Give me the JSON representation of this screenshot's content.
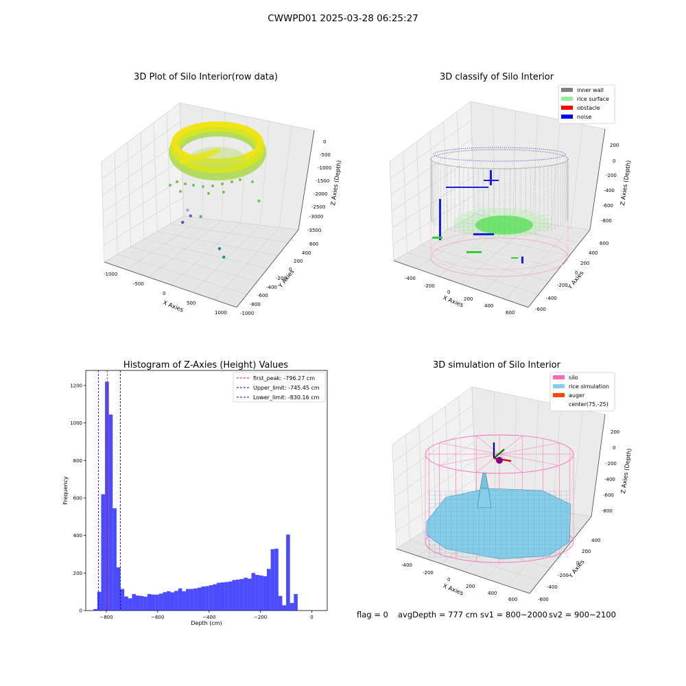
{
  "suptitle": "CWWPD01 2025-03-28 06:25:27",
  "status_line": {
    "flag": "flag = 0",
    "avg_depth": "avgDepth = 777 cm",
    "sv1": "sv1 = 800~2000",
    "sv2": "sv2 = 900~2100"
  },
  "chart_data": [
    {
      "type": "scatter",
      "projection": "3d",
      "title": "3D Plot of Silo Interior(row data)",
      "xlabel": "X Axies",
      "ylabel": "Y Axies",
      "zlabel": "Z Axies (Depth)",
      "x_ticks": [
        "-1000",
        "-500",
        "0",
        "500",
        "1000"
      ],
      "y_ticks": [
        "-1000",
        "-800",
        "-600",
        "-400",
        "-200",
        "0",
        "200",
        "400",
        "600"
      ],
      "z_ticks": [
        "0",
        "-500",
        "-1000",
        "-1500",
        "-2000",
        "-2500",
        "-3000",
        "-3500"
      ],
      "xlim": [
        -1100,
        1100
      ],
      "ylim": [
        -1000,
        650
      ],
      "zlim": [
        -3700,
        150
      ],
      "colormap": "viridis",
      "outlier_points": [
        {
          "x": -1000,
          "y": 500,
          "z": -3700
        },
        {
          "x": -700,
          "y": 300,
          "z": -3000
        },
        {
          "x": -500,
          "y": 0,
          "z": -2300
        },
        {
          "x": -200,
          "y": -100,
          "z": -2200
        },
        {
          "x": 100,
          "y": -100,
          "z": -3200
        },
        {
          "x": 250,
          "y": -200,
          "z": -3300
        },
        {
          "x": 700,
          "y": 0,
          "z": -1000
        }
      ]
    },
    {
      "type": "scatter",
      "projection": "3d",
      "title": "3D classify of Silo Interior",
      "xlabel": "X Axies",
      "ylabel": "Y Axies",
      "zlabel": "Z Axies (Depth)",
      "x_ticks": [
        "-400",
        "-200",
        "0",
        "200",
        "400",
        "600"
      ],
      "y_ticks": [
        "-600",
        "-400",
        "-200",
        "0",
        "200",
        "400",
        "600"
      ],
      "z_ticks": [
        "200",
        "0",
        "-200",
        "-400",
        "-600",
        "-800"
      ],
      "xlim": [
        -550,
        700
      ],
      "ylim": [
        -650,
        650
      ],
      "zlim": [
        -900,
        300
      ],
      "legend_position": "upper right",
      "legend": [
        {
          "label": "inner wall",
          "color": "#808080"
        },
        {
          "label": "rice surface",
          "color": "#90ee90"
        },
        {
          "label": "obstacle",
          "color": "#ff0000"
        },
        {
          "label": "noise",
          "color": "#0000ff"
        }
      ]
    },
    {
      "type": "bar",
      "title": "Histogram of Z-Axies (Height) Values",
      "xlabel": "Depth (cm)",
      "ylabel": "Frequency",
      "xlim": [
        -880,
        60
      ],
      "ylim": [
        0,
        1280
      ],
      "x_ticks": [
        -800,
        -600,
        -400,
        -200,
        0
      ],
      "y_ticks": [
        0,
        200,
        400,
        600,
        800,
        1000,
        1200
      ],
      "bar_color": "#0000ff",
      "bins": [
        {
          "start": -850,
          "end": -835,
          "value": 8
        },
        {
          "start": -835,
          "end": -820,
          "value": 100
        },
        {
          "start": -820,
          "end": -805,
          "value": 620
        },
        {
          "start": -805,
          "end": -790,
          "value": 1220
        },
        {
          "start": -790,
          "end": -775,
          "value": 1045
        },
        {
          "start": -775,
          "end": -760,
          "value": 545
        },
        {
          "start": -760,
          "end": -745,
          "value": 230
        },
        {
          "start": -745,
          "end": -730,
          "value": 115
        },
        {
          "start": -730,
          "end": -715,
          "value": 75
        },
        {
          "start": -715,
          "end": -700,
          "value": 65
        },
        {
          "start": -700,
          "end": -685,
          "value": 88
        },
        {
          "start": -685,
          "end": -670,
          "value": 80
        },
        {
          "start": -670,
          "end": -655,
          "value": 78
        },
        {
          "start": -655,
          "end": -640,
          "value": 74
        },
        {
          "start": -640,
          "end": -625,
          "value": 88
        },
        {
          "start": -625,
          "end": -610,
          "value": 85
        },
        {
          "start": -610,
          "end": -595,
          "value": 85
        },
        {
          "start": -595,
          "end": -580,
          "value": 90
        },
        {
          "start": -580,
          "end": -565,
          "value": 98
        },
        {
          "start": -565,
          "end": -550,
          "value": 103
        },
        {
          "start": -550,
          "end": -535,
          "value": 97
        },
        {
          "start": -535,
          "end": -520,
          "value": 105
        },
        {
          "start": -520,
          "end": -505,
          "value": 118
        },
        {
          "start": -505,
          "end": -490,
          "value": 103
        },
        {
          "start": -490,
          "end": -475,
          "value": 115
        },
        {
          "start": -475,
          "end": -460,
          "value": 115
        },
        {
          "start": -460,
          "end": -445,
          "value": 118
        },
        {
          "start": -445,
          "end": -430,
          "value": 122
        },
        {
          "start": -430,
          "end": -415,
          "value": 128
        },
        {
          "start": -415,
          "end": -400,
          "value": 130
        },
        {
          "start": -400,
          "end": -385,
          "value": 135
        },
        {
          "start": -385,
          "end": -370,
          "value": 140
        },
        {
          "start": -370,
          "end": -355,
          "value": 148
        },
        {
          "start": -355,
          "end": -340,
          "value": 150
        },
        {
          "start": -340,
          "end": -325,
          "value": 152
        },
        {
          "start": -325,
          "end": -310,
          "value": 155
        },
        {
          "start": -310,
          "end": -295,
          "value": 163
        },
        {
          "start": -295,
          "end": -280,
          "value": 165
        },
        {
          "start": -280,
          "end": -265,
          "value": 168
        },
        {
          "start": -265,
          "end": -250,
          "value": 175
        },
        {
          "start": -250,
          "end": -235,
          "value": 170
        },
        {
          "start": -235,
          "end": -220,
          "value": 200
        },
        {
          "start": -220,
          "end": -205,
          "value": 190
        },
        {
          "start": -205,
          "end": -190,
          "value": 187
        },
        {
          "start": -190,
          "end": -175,
          "value": 183
        },
        {
          "start": -175,
          "end": -160,
          "value": 222
        },
        {
          "start": -160,
          "end": -145,
          "value": 327
        },
        {
          "start": -145,
          "end": -130,
          "value": 330
        },
        {
          "start": -130,
          "end": -115,
          "value": 78
        },
        {
          "start": -115,
          "end": -100,
          "value": 28
        },
        {
          "start": -100,
          "end": -85,
          "value": 405
        },
        {
          "start": -85,
          "end": -70,
          "value": 40
        },
        {
          "start": -70,
          "end": -55,
          "value": 88
        }
      ],
      "vlines": [
        {
          "label": "first_peak: -796.27 cm",
          "x": -796.27,
          "color": "#ff0000"
        },
        {
          "label": "Upper_limit: -745.45 cm",
          "x": -745.45,
          "color": "#00008b"
        },
        {
          "label": "Lower_limit: -830.16 cm",
          "x": -830.16,
          "color": "#0000ff"
        }
      ],
      "legend_position": "upper right"
    },
    {
      "type": "surface",
      "projection": "3d",
      "title": "3D simulation of Silo Interior",
      "xlabel": "X Axies",
      "ylabel": "Y Axies",
      "zlabel": "Z Axies (Depth)",
      "x_ticks": [
        "-400",
        "-200",
        "0",
        "200",
        "400",
        "600"
      ],
      "y_ticks": [
        "-600",
        "-400",
        "-200",
        "0",
        "200",
        "400"
      ],
      "z_ticks": [
        "200",
        "0",
        "-200",
        "-400",
        "-600",
        "-800"
      ],
      "xlim": [
        -550,
        700
      ],
      "ylim": [
        -650,
        500
      ],
      "zlim": [
        -900,
        300
      ],
      "legend_position": "upper right",
      "legend": [
        {
          "label": "silo",
          "color": "#ff69b4"
        },
        {
          "label": "rice simulation",
          "color": "#87ceeb"
        },
        {
          "label": "auger",
          "color": "#ff4500"
        },
        {
          "label": "center(75,-25)",
          "color": "#ffffff"
        }
      ]
    }
  ]
}
